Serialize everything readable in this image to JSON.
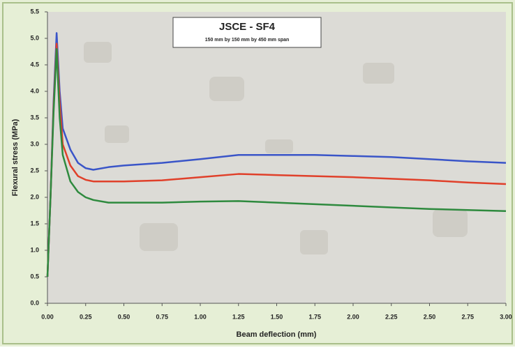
{
  "chart_data": {
    "type": "line",
    "title": "JSCE - SF4",
    "subtitle": "150 mm by 150 mm by 450 mm span",
    "x_label": "Beam deflection (mm)",
    "y_label": "Flexural stress (MPa)",
    "x": [
      0,
      0.02,
      0.04,
      0.06,
      0.08,
      0.1,
      0.15,
      0.2,
      0.25,
      0.3,
      0.4,
      0.5,
      0.75,
      1.0,
      1.25,
      1.5,
      1.75,
      2.0,
      2.25,
      2.5,
      2.75,
      3.0
    ],
    "series": [
      {
        "color": "#3a55c8",
        "values": [
          0.5,
          2.0,
          3.8,
          5.1,
          4.0,
          3.3,
          2.9,
          2.65,
          2.55,
          2.52,
          2.57,
          2.6,
          2.65,
          2.72,
          2.8,
          2.8,
          2.8,
          2.78,
          2.76,
          2.72,
          2.68,
          2.65
        ]
      },
      {
        "color": "#e0402a",
        "values": [
          0.5,
          2.0,
          3.7,
          4.9,
          3.8,
          3.0,
          2.6,
          2.4,
          2.33,
          2.3,
          2.3,
          2.3,
          2.32,
          2.38,
          2.44,
          2.42,
          2.4,
          2.38,
          2.35,
          2.32,
          2.28,
          2.25
        ]
      },
      {
        "color": "#2e8a3e",
        "values": [
          0.5,
          2.0,
          3.6,
          4.8,
          3.5,
          2.8,
          2.3,
          2.1,
          2.0,
          1.95,
          1.9,
          1.9,
          1.9,
          1.92,
          1.93,
          1.9,
          1.87,
          1.84,
          1.81,
          1.78,
          1.76,
          1.74
        ]
      }
    ],
    "xlim": [
      0,
      3.0
    ],
    "xticks": [
      {
        "value": 0,
        "label": "0.00"
      },
      0.25,
      {
        "value": 0.5,
        "label": "0.50"
      },
      0.75,
      {
        "value": 1.0,
        "label": "1.00"
      },
      1.25,
      {
        "value": 1.5,
        "label": "1.50"
      },
      1.75,
      {
        "value": 2.0,
        "label": "2.00"
      },
      2.25,
      {
        "value": 2.5,
        "label": "2.50"
      },
      2.75,
      {
        "value": 3.0,
        "label": "3.00"
      }
    ],
    "ylim": [
      0,
      5.5
    ],
    "yticks": [
      {
        "value": 0,
        "label": "0.0"
      },
      0.5,
      {
        "value": 1.0,
        "label": "1.0"
      },
      1.5,
      {
        "value": 2.0,
        "label": "2.0"
      },
      2.5,
      {
        "value": 3.0,
        "label": "3.0"
      },
      3.5,
      {
        "value": 4.0,
        "label": "4.0"
      },
      4.5,
      {
        "value": 5.0,
        "label": "5.0"
      },
      5.5
    ]
  }
}
